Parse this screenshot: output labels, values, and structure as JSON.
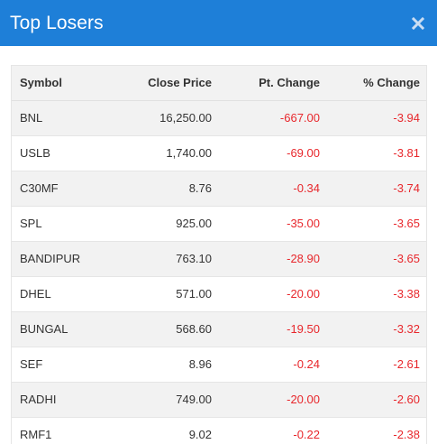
{
  "header": {
    "title": "Top Losers",
    "close_icon": "close-icon"
  },
  "colors": {
    "header_bg": "#1e7fd8",
    "negative": "#e8272c",
    "row_alt": "#f2f2f2"
  },
  "table": {
    "columns": [
      "Symbol",
      "Close Price",
      "Pt. Change",
      "% Change"
    ],
    "rows": [
      {
        "symbol": "BNL",
        "close": "16,250.00",
        "pt": "-667.00",
        "pct": "-3.94"
      },
      {
        "symbol": "USLB",
        "close": "1,740.00",
        "pt": "-69.00",
        "pct": "-3.81"
      },
      {
        "symbol": "C30MF",
        "close": "8.76",
        "pt": "-0.34",
        "pct": "-3.74"
      },
      {
        "symbol": "SPL",
        "close": "925.00",
        "pt": "-35.00",
        "pct": "-3.65"
      },
      {
        "symbol": "BANDIPUR",
        "close": "763.10",
        "pt": "-28.90",
        "pct": "-3.65"
      },
      {
        "symbol": "DHEL",
        "close": "571.00",
        "pt": "-20.00",
        "pct": "-3.38"
      },
      {
        "symbol": "BUNGAL",
        "close": "568.60",
        "pt": "-19.50",
        "pct": "-3.32"
      },
      {
        "symbol": "SEF",
        "close": "8.96",
        "pt": "-0.24",
        "pct": "-2.61"
      },
      {
        "symbol": "RADHI",
        "close": "749.00",
        "pt": "-20.00",
        "pct": "-2.60"
      },
      {
        "symbol": "RMF1",
        "close": "9.02",
        "pt": "-0.22",
        "pct": "-2.38"
      }
    ]
  }
}
